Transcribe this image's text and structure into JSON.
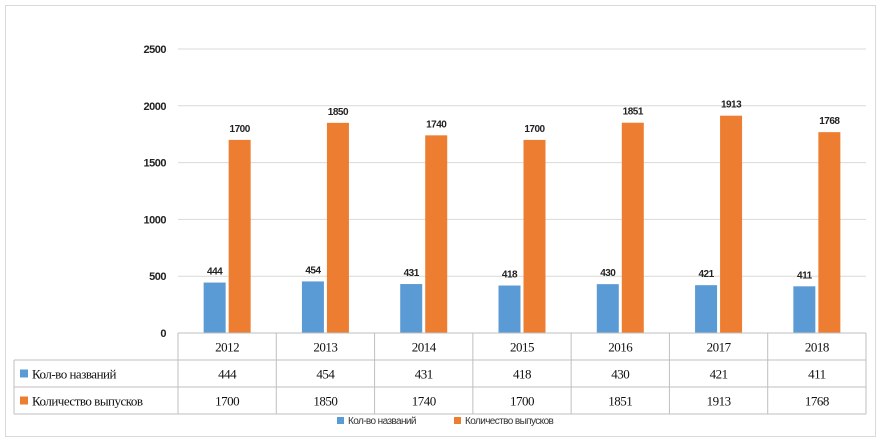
{
  "chart_data": {
    "type": "bar",
    "categories": [
      "2012",
      "2013",
      "2014",
      "2015",
      "2016",
      "2017",
      "2018"
    ],
    "series": [
      {
        "name": "Кол-во названий",
        "values": [
          444,
          454,
          431,
          418,
          430,
          421,
          411
        ],
        "color": "#5b9bd5"
      },
      {
        "name": "Количество выпусков",
        "values": [
          1700,
          1850,
          1740,
          1700,
          1851,
          1913,
          1768
        ],
        "color": "#ed7d31"
      }
    ],
    "ylim": [
      0,
      2500
    ],
    "yticks": [
      0,
      500,
      1000,
      1500,
      2000,
      2500
    ],
    "grid": true,
    "legend": "bottom",
    "data_table": true
  }
}
